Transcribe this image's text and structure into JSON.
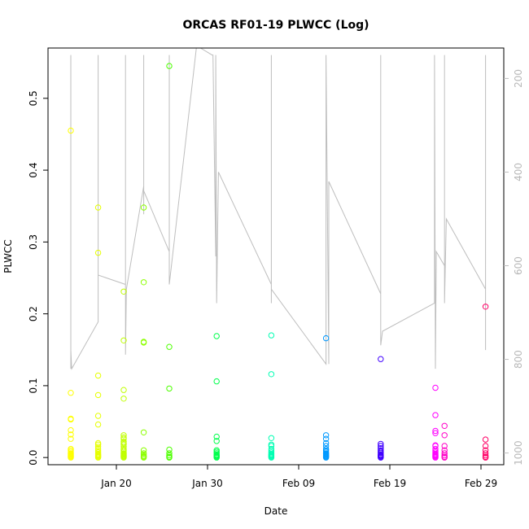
{
  "chart_data": {
    "type": "scatter",
    "title": "ORCAS RF01-19 PLWCC (Log)",
    "xlabel": "Date",
    "ylabel": "PLWCC",
    "x_ticks": [
      "Jan 20",
      "Jan 30",
      "Feb 09",
      "Feb 19",
      "Feb 29"
    ],
    "x_tick_days": [
      20,
      30,
      40,
      50,
      60
    ],
    "xlim_days": [
      12.5,
      62.5
    ],
    "ylim": [
      -0.01,
      0.57
    ],
    "y_ticks": [
      0.0,
      0.1,
      0.2,
      0.3,
      0.4,
      0.5
    ],
    "y_tick_labels": [
      "0.0",
      "0.1",
      "0.2",
      "0.3",
      "0.4",
      "0.5"
    ],
    "right_axis": {
      "ticks": [
        200,
        400,
        600,
        800,
        1000
      ],
      "tick_labels": [
        "200",
        "400",
        "600",
        "800",
        "1000"
      ],
      "ylim_reversed": [
        1025,
        135
      ],
      "color": "#bebebe"
    },
    "flights": [
      {
        "day": 15.0,
        "color": "#ffff00",
        "values": [
          0.455,
          0.09,
          0.054,
          0.053,
          0.038,
          0.032,
          0.026,
          0.012,
          0.01,
          0.008,
          0.006,
          0.005,
          0.004,
          0.003,
          0.002,
          0.001,
          0.0
        ]
      },
      {
        "day": 18.0,
        "color": "#e6ff00",
        "values": [
          0.348,
          0.285,
          0.114,
          0.087,
          0.058,
          0.046,
          0.02,
          0.018,
          0.015,
          0.012,
          0.009,
          0.007,
          0.005,
          0.004,
          0.003,
          0.002,
          0.001,
          0.0
        ]
      },
      {
        "day": 20.8,
        "color": "#c0ff00",
        "values": [
          0.231,
          0.163,
          0.094,
          0.082,
          0.031,
          0.028,
          0.026,
          0.022,
          0.02,
          0.018,
          0.015,
          0.012,
          0.01,
          0.008,
          0.006,
          0.005,
          0.004,
          0.003,
          0.002,
          0.001,
          0.0
        ]
      },
      {
        "day": 23.0,
        "color": "#8cff00",
        "values": [
          0.348,
          0.244,
          0.161,
          0.16,
          0.035,
          0.01,
          0.006,
          0.004,
          0.002,
          0.001,
          0.0
        ]
      },
      {
        "day": 25.8,
        "color": "#4dff00",
        "values": [
          0.545,
          0.154,
          0.096,
          0.011,
          0.006,
          0.003,
          0.001,
          0.0
        ]
      },
      {
        "day": 31.0,
        "color": "#00ff4d",
        "values": [
          0.169,
          0.106,
          0.029,
          0.023,
          0.01,
          0.008,
          0.006,
          0.004,
          0.003,
          0.002,
          0.001,
          0.0
        ]
      },
      {
        "day": 37.0,
        "color": "#00ffb3",
        "values": [
          0.17,
          0.116,
          0.027,
          0.018,
          0.016,
          0.012,
          0.009,
          0.007,
          0.005,
          0.004,
          0.003,
          0.002,
          0.001,
          0.0
        ]
      },
      {
        "day": 43.0,
        "color": "#0099ff",
        "values": [
          0.166,
          0.031,
          0.026,
          0.02,
          0.016,
          0.012,
          0.01,
          0.008,
          0.006,
          0.005,
          0.004,
          0.003,
          0.002,
          0.001,
          0.0
        ]
      },
      {
        "day": 49.0,
        "color": "#4000ff",
        "values": [
          0.137,
          0.019,
          0.016,
          0.013,
          0.01,
          0.008,
          0.006,
          0.004,
          0.003,
          0.002,
          0.001,
          0.0
        ]
      },
      {
        "day": 55.0,
        "color": "#ff00ff",
        "values": [
          0.097,
          0.059,
          0.037,
          0.034,
          0.017,
          0.016,
          0.012,
          0.009,
          0.007,
          0.005,
          0.004,
          0.003,
          0.002,
          0.001,
          0.0
        ]
      },
      {
        "day": 56.0,
        "color": "#ff00c8",
        "values": [
          0.044,
          0.031,
          0.016,
          0.01,
          0.006,
          0.003,
          0.001,
          0.0
        ]
      },
      {
        "day": 60.5,
        "color": "#ff0066",
        "values": [
          0.21,
          0.025,
          0.016,
          0.01,
          0.006,
          0.003,
          0.001,
          0.0
        ]
      }
    ],
    "pressure_profile": [
      [
        15.0,
        150
      ],
      [
        15.0,
        820
      ],
      [
        15.0,
        780
      ],
      [
        15.1,
        820
      ],
      [
        18.0,
        720
      ],
      [
        18.0,
        150
      ],
      [
        18.0,
        620
      ],
      [
        21.0,
        640
      ],
      [
        21.0,
        150
      ],
      [
        21.0,
        790
      ],
      [
        21.1,
        650
      ],
      [
        23.0,
        430
      ],
      [
        23.0,
        150
      ],
      [
        23.0,
        490
      ],
      [
        23.0,
        440
      ],
      [
        25.8,
        570
      ],
      [
        25.8,
        150
      ],
      [
        25.8,
        640
      ],
      [
        28.8,
        130
      ],
      [
        30.5,
        150
      ],
      [
        30.6,
        150
      ],
      [
        30.9,
        580
      ],
      [
        30.9,
        150
      ],
      [
        31.0,
        680
      ],
      [
        31.2,
        400
      ],
      [
        37.0,
        640
      ],
      [
        37.0,
        150
      ],
      [
        37.0,
        680
      ],
      [
        37.0,
        650
      ],
      [
        43.0,
        810
      ],
      [
        43.0,
        150
      ],
      [
        43.3,
        810
      ],
      [
        43.3,
        420
      ],
      [
        49.0,
        660
      ],
      [
        49.0,
        150
      ],
      [
        49.0,
        770
      ],
      [
        49.2,
        740
      ],
      [
        54.9,
        680
      ],
      [
        54.9,
        150
      ],
      [
        55.0,
        820
      ],
      [
        55.1,
        570
      ],
      [
        56.0,
        600
      ],
      [
        56.0,
        150
      ],
      [
        56.0,
        680
      ],
      [
        56.2,
        500
      ],
      [
        60.5,
        650
      ],
      [
        60.5,
        150
      ],
      [
        60.5,
        780
      ]
    ]
  }
}
